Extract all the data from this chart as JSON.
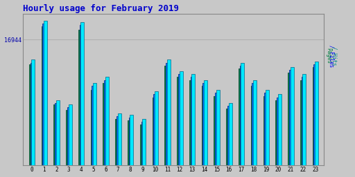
{
  "title": "Hourly usage for February 2019",
  "title_color": "#0000cc",
  "title_fontsize": 9,
  "hours": [
    0,
    1,
    2,
    3,
    4,
    5,
    6,
    7,
    8,
    9,
    10,
    11,
    12,
    13,
    14,
    15,
    16,
    17,
    18,
    19,
    20,
    21,
    22,
    23
  ],
  "hits_values": [
    0.73,
    1.0,
    0.45,
    0.42,
    0.99,
    0.57,
    0.61,
    0.36,
    0.35,
    0.32,
    0.51,
    0.73,
    0.65,
    0.63,
    0.59,
    0.52,
    0.43,
    0.71,
    0.59,
    0.52,
    0.49,
    0.68,
    0.63,
    0.72
  ],
  "files_values": [
    0.71,
    0.98,
    0.43,
    0.4,
    0.97,
    0.55,
    0.59,
    0.34,
    0.33,
    0.3,
    0.49,
    0.71,
    0.63,
    0.61,
    0.57,
    0.5,
    0.41,
    0.69,
    0.57,
    0.5,
    0.47,
    0.66,
    0.61,
    0.7
  ],
  "pages_values": [
    0.7,
    0.96,
    0.42,
    0.38,
    0.94,
    0.52,
    0.57,
    0.32,
    0.31,
    0.28,
    0.47,
    0.69,
    0.61,
    0.59,
    0.55,
    0.48,
    0.39,
    0.67,
    0.55,
    0.48,
    0.45,
    0.64,
    0.59,
    0.68
  ],
  "bar_color_pages": "#008040",
  "bar_color_files": "#0080ff",
  "bar_color_hits": "#00e8ff",
  "bar_edge_color": "#004433",
  "background_color": "#c8c8c8",
  "plot_bg_color": "#c8c8c8",
  "ylabel": "16944",
  "ylabel_color": "#0000aa",
  "ylabel_fontsize": 6,
  "grid_color": "#b0b0b0",
  "ylim": [
    0,
    1.05
  ],
  "bar_width": 0.28
}
